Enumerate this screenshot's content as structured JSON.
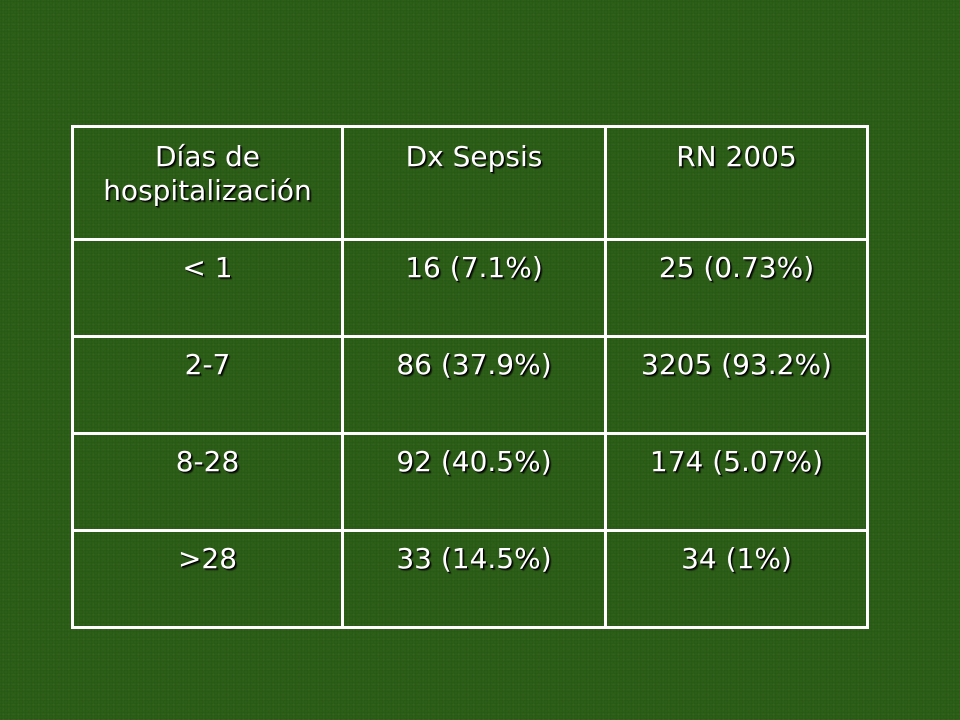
{
  "table": {
    "headers": [
      "Días de hospitalización",
      "Dx Sepsis",
      "RN 2005"
    ],
    "rows": [
      [
        "< 1",
        "16 (7.1%)",
        "25 (0.73%)"
      ],
      [
        "2-7",
        "86 (37.9%)",
        "3205 (93.2%)"
      ],
      [
        "8-28",
        "92 (40.5%)",
        "174 (5.07%)"
      ],
      [
        ">28",
        "33 (14.5%)",
        "34 (1%)"
      ]
    ]
  },
  "colors": {
    "background": "#2c5e17",
    "text": "#ffffff",
    "border": "#ffffff"
  }
}
